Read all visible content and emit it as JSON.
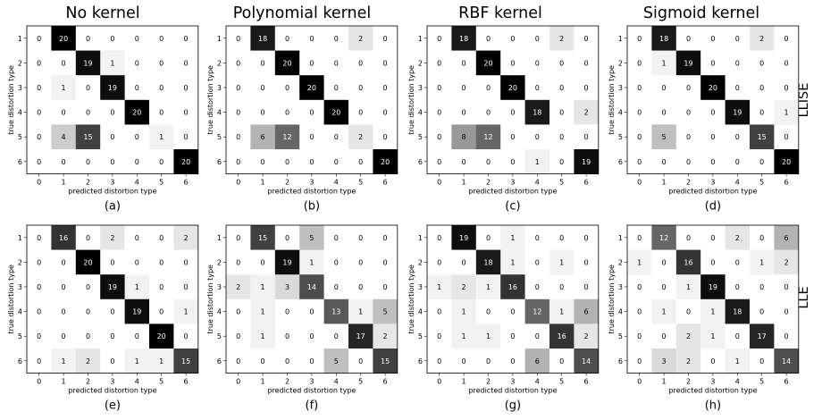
{
  "column_titles": [
    "No kernel",
    "Polynomial kernel",
    "RBF kernel",
    "Sigmoid kernel"
  ],
  "row_labels": [
    "LLISE",
    "LLE"
  ],
  "chart_data": [
    {
      "type": "heatmap",
      "panel": "(a)",
      "method": "LLISE",
      "kernel": "No kernel",
      "xlabel": "predicted distortion type",
      "ylabel": "true distortion type",
      "x_ticks": [
        "0",
        "1",
        "2",
        "3",
        "4",
        "5",
        "6"
      ],
      "y_ticks": [
        "1",
        "2",
        "3",
        "4",
        "5",
        "6"
      ],
      "matrix": [
        [
          0,
          20,
          0,
          0,
          0,
          0,
          0
        ],
        [
          0,
          0,
          19,
          1,
          0,
          0,
          0
        ],
        [
          0,
          1,
          0,
          19,
          0,
          0,
          0
        ],
        [
          0,
          0,
          0,
          0,
          20,
          0,
          0
        ],
        [
          0,
          4,
          15,
          0,
          0,
          1,
          0
        ],
        [
          0,
          0,
          0,
          0,
          0,
          0,
          20
        ]
      ]
    },
    {
      "type": "heatmap",
      "panel": "(b)",
      "method": "LLISE",
      "kernel": "Polynomial kernel",
      "xlabel": "predicted distortion type",
      "ylabel": "true distortion type",
      "x_ticks": [
        "0",
        "1",
        "2",
        "3",
        "4",
        "5",
        "6"
      ],
      "y_ticks": [
        "1",
        "2",
        "3",
        "4",
        "5",
        "6"
      ],
      "matrix": [
        [
          0,
          18,
          0,
          0,
          0,
          2,
          0
        ],
        [
          0,
          0,
          20,
          0,
          0,
          0,
          0
        ],
        [
          0,
          0,
          0,
          20,
          0,
          0,
          0
        ],
        [
          0,
          0,
          0,
          0,
          20,
          0,
          0
        ],
        [
          0,
          6,
          12,
          0,
          0,
          2,
          0
        ],
        [
          0,
          0,
          0,
          0,
          0,
          0,
          20
        ]
      ]
    },
    {
      "type": "heatmap",
      "panel": "(c)",
      "method": "LLISE",
      "kernel": "RBF kernel",
      "xlabel": "predicted distortion type",
      "ylabel": "true distortion type",
      "x_ticks": [
        "0",
        "1",
        "2",
        "3",
        "4",
        "5",
        "6"
      ],
      "y_ticks": [
        "1",
        "2",
        "3",
        "4",
        "5",
        "6"
      ],
      "matrix": [
        [
          0,
          18,
          0,
          0,
          0,
          2,
          0
        ],
        [
          0,
          0,
          20,
          0,
          0,
          0,
          0
        ],
        [
          0,
          0,
          0,
          20,
          0,
          0,
          0
        ],
        [
          0,
          0,
          0,
          0,
          18,
          0,
          2
        ],
        [
          0,
          8,
          12,
          0,
          0,
          0,
          0
        ],
        [
          0,
          0,
          0,
          0,
          1,
          0,
          19
        ]
      ]
    },
    {
      "type": "heatmap",
      "panel": "(d)",
      "method": "LLISE",
      "kernel": "Sigmoid kernel",
      "xlabel": "predicted distortion type",
      "ylabel": "true distortion type",
      "x_ticks": [
        "0",
        "1",
        "2",
        "3",
        "4",
        "5",
        "6"
      ],
      "y_ticks": [
        "1",
        "2",
        "3",
        "4",
        "5",
        "6"
      ],
      "matrix": [
        [
          0,
          18,
          0,
          0,
          0,
          2,
          0
        ],
        [
          0,
          1,
          19,
          0,
          0,
          0,
          0
        ],
        [
          0,
          0,
          0,
          20,
          0,
          0,
          0
        ],
        [
          0,
          0,
          0,
          0,
          19,
          0,
          1
        ],
        [
          0,
          5,
          0,
          0,
          0,
          15,
          0
        ],
        [
          0,
          0,
          0,
          0,
          0,
          0,
          20
        ]
      ]
    },
    {
      "type": "heatmap",
      "panel": "(e)",
      "method": "LLE",
      "kernel": "No kernel",
      "xlabel": "predicted distortion type",
      "ylabel": "true distortion type",
      "x_ticks": [
        "0",
        "1",
        "2",
        "3",
        "4",
        "5",
        "6"
      ],
      "y_ticks": [
        "1",
        "2",
        "3",
        "4",
        "5",
        "6"
      ],
      "matrix": [
        [
          0,
          16,
          0,
          2,
          0,
          0,
          2
        ],
        [
          0,
          0,
          20,
          0,
          0,
          0,
          0
        ],
        [
          0,
          0,
          0,
          19,
          1,
          0,
          0
        ],
        [
          0,
          0,
          0,
          0,
          19,
          0,
          1
        ],
        [
          0,
          0,
          0,
          0,
          0,
          20,
          0
        ],
        [
          0,
          1,
          2,
          0,
          1,
          1,
          15
        ]
      ]
    },
    {
      "type": "heatmap",
      "panel": "(f)",
      "method": "LLE",
      "kernel": "Polynomial kernel",
      "xlabel": "predicted distortion type",
      "ylabel": "true distortion type",
      "x_ticks": [
        "0",
        "1",
        "2",
        "3",
        "4",
        "5",
        "6"
      ],
      "y_ticks": [
        "1",
        "2",
        "3",
        "4",
        "5",
        "6"
      ],
      "matrix": [
        [
          0,
          15,
          0,
          5,
          0,
          0,
          0
        ],
        [
          0,
          0,
          19,
          1,
          0,
          0,
          0
        ],
        [
          2,
          1,
          3,
          14,
          0,
          0,
          0
        ],
        [
          0,
          1,
          0,
          0,
          13,
          1,
          5
        ],
        [
          0,
          1,
          0,
          0,
          0,
          17,
          2
        ],
        [
          0,
          0,
          0,
          0,
          5,
          0,
          15
        ]
      ]
    },
    {
      "type": "heatmap",
      "panel": "(g)",
      "method": "LLE",
      "kernel": "RBF kernel",
      "xlabel": "predicted distortion type",
      "ylabel": "true distortion type",
      "x_ticks": [
        "0",
        "1",
        "2",
        "3",
        "4",
        "5",
        "6"
      ],
      "y_ticks": [
        "1",
        "2",
        "3",
        "4",
        "5",
        "6"
      ],
      "matrix": [
        [
          0,
          19,
          0,
          1,
          0,
          0,
          0
        ],
        [
          0,
          0,
          18,
          1,
          0,
          1,
          0
        ],
        [
          1,
          2,
          1,
          16,
          0,
          0,
          0
        ],
        [
          0,
          1,
          0,
          0,
          12,
          1,
          6
        ],
        [
          0,
          1,
          1,
          0,
          0,
          16,
          2
        ],
        [
          0,
          0,
          0,
          0,
          6,
          0,
          14
        ]
      ]
    },
    {
      "type": "heatmap",
      "panel": "(h)",
      "method": "LLE",
      "kernel": "Sigmoid kernel",
      "xlabel": "predicted distortion type",
      "ylabel": "true distortion type",
      "x_ticks": [
        "0",
        "1",
        "2",
        "3",
        "4",
        "5",
        "6"
      ],
      "y_ticks": [
        "1",
        "2",
        "3",
        "4",
        "5",
        "6"
      ],
      "matrix": [
        [
          0,
          12,
          0,
          0,
          2,
          0,
          6
        ],
        [
          1,
          0,
          16,
          0,
          0,
          1,
          2
        ],
        [
          0,
          0,
          1,
          19,
          0,
          0,
          0
        ],
        [
          0,
          1,
          0,
          1,
          18,
          0,
          0
        ],
        [
          0,
          0,
          2,
          1,
          0,
          17,
          0
        ],
        [
          0,
          3,
          2,
          0,
          1,
          0,
          14
        ]
      ]
    }
  ],
  "colormap": {
    "low": "#ffffff",
    "high": "#000000",
    "vmax": 20
  }
}
